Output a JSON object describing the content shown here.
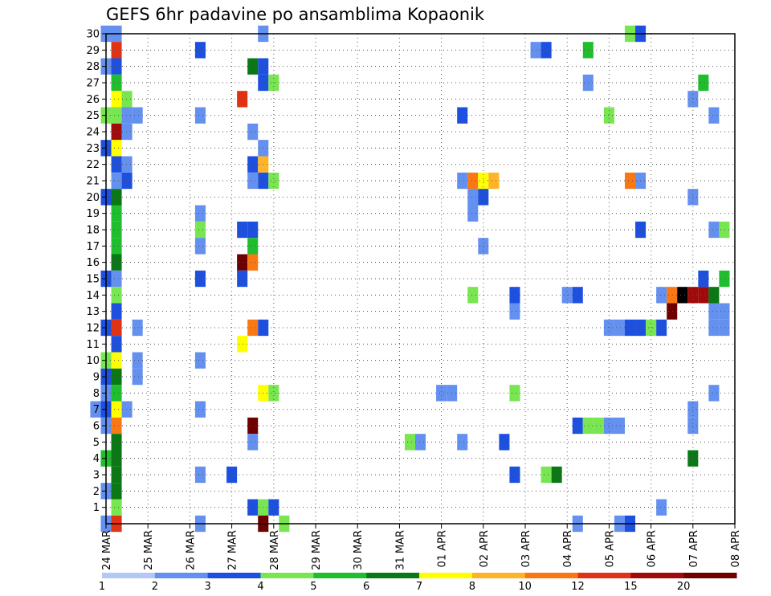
{
  "chart_data": {
    "type": "heatmap",
    "title": "GEFS 6hr padavine po ansamblima Kopaonik",
    "x_labels": [
      "24 MAR",
      "25 MAR",
      "26 MAR",
      "27 MAR",
      "28 MAR",
      "29 MAR",
      "30 MAR",
      "31 MAR",
      "01 APR",
      "02 APR",
      "03 APR",
      "04 APR",
      "05 APR",
      "06 APR",
      "07 APR",
      "08 APR"
    ],
    "y_labels": [
      "1",
      "2",
      "3",
      "4",
      "5",
      "6",
      "7",
      "8",
      "9",
      "10",
      "11",
      "12",
      "13",
      "14",
      "15",
      "16",
      "17",
      "18",
      "19",
      "20",
      "21",
      "22",
      "23",
      "24",
      "25",
      "26",
      "27",
      "28",
      "29",
      "30"
    ],
    "y_range": [
      0,
      30
    ],
    "x_range": [
      0,
      60
    ],
    "grid": true,
    "colorbar": {
      "labels": [
        "1",
        "2",
        "3",
        "4",
        "5",
        "6",
        "7",
        "8",
        "10",
        "12",
        "15",
        "20"
      ],
      "colors": [
        "#b4c8f8",
        "#6490f0",
        "#1e50e0",
        "#78e650",
        "#1ebe2d",
        "#0a7814",
        "#ffff00",
        "#ffb428",
        "#fa7814",
        "#e13214",
        "#a00a0a",
        "#6e0000"
      ]
    },
    "cells": [
      [
        1,
        30,
        1
      ],
      [
        1,
        29,
        9
      ],
      [
        1,
        28,
        2
      ],
      [
        1,
        27,
        4
      ],
      [
        1,
        26,
        6
      ],
      [
        1,
        25,
        3
      ],
      [
        1,
        24,
        10
      ],
      [
        1,
        23,
        6
      ],
      [
        1,
        22,
        2
      ],
      [
        1,
        21,
        1
      ],
      [
        1,
        20,
        5
      ],
      [
        1,
        19,
        4
      ],
      [
        1,
        18,
        4
      ],
      [
        1,
        17,
        4
      ],
      [
        1,
        16,
        5
      ],
      [
        1,
        15,
        1
      ],
      [
        1,
        14,
        3
      ],
      [
        1,
        13,
        2
      ],
      [
        1,
        12,
        9
      ],
      [
        1,
        11,
        2
      ],
      [
        1,
        10,
        6
      ],
      [
        1,
        9,
        5
      ],
      [
        1,
        8,
        4
      ],
      [
        1,
        7,
        6
      ],
      [
        1,
        6,
        8
      ],
      [
        1,
        5,
        5
      ],
      [
        1,
        4,
        5
      ],
      [
        1,
        3,
        5
      ],
      [
        1,
        2,
        5
      ],
      [
        1,
        1,
        3
      ],
      [
        1,
        0,
        9
      ],
      [
        0,
        30,
        1
      ],
      [
        0,
        28,
        1
      ],
      [
        0,
        25,
        3
      ],
      [
        0,
        23,
        2
      ],
      [
        0,
        20,
        2
      ],
      [
        0,
        15,
        2
      ],
      [
        0,
        12,
        2
      ],
      [
        0,
        10,
        3
      ],
      [
        0,
        9,
        2
      ],
      [
        0,
        8,
        1
      ],
      [
        0,
        7,
        2
      ],
      [
        0,
        6,
        1
      ],
      [
        0,
        4,
        4
      ],
      [
        0,
        2,
        1
      ],
      [
        0,
        0,
        1
      ],
      [
        -1,
        7,
        1
      ],
      [
        2,
        26,
        3
      ],
      [
        2,
        25,
        1
      ],
      [
        2,
        24,
        1
      ],
      [
        2,
        22,
        1
      ],
      [
        2,
        21,
        2
      ],
      [
        2,
        7,
        1
      ],
      [
        3,
        25,
        1
      ],
      [
        3,
        12,
        1
      ],
      [
        3,
        10,
        1
      ],
      [
        3,
        9,
        1
      ],
      [
        9,
        29,
        2
      ],
      [
        9,
        25,
        1
      ],
      [
        9,
        19,
        1
      ],
      [
        9,
        18,
        3
      ],
      [
        9,
        17,
        1
      ],
      [
        9,
        15,
        2
      ],
      [
        9,
        10,
        1
      ],
      [
        9,
        7,
        1
      ],
      [
        9,
        3,
        1
      ],
      [
        9,
        0,
        1
      ],
      [
        12,
        3,
        2
      ],
      [
        13,
        26,
        9
      ],
      [
        13,
        18,
        2
      ],
      [
        13,
        16,
        11
      ],
      [
        13,
        15,
        2
      ],
      [
        13,
        11,
        6
      ],
      [
        14,
        28,
        5
      ],
      [
        14,
        24,
        1
      ],
      [
        14,
        22,
        2
      ],
      [
        14,
        21,
        1
      ],
      [
        14,
        18,
        2
      ],
      [
        14,
        17,
        4
      ],
      [
        14,
        16,
        8
      ],
      [
        14,
        12,
        8
      ],
      [
        14,
        6,
        11
      ],
      [
        14,
        5,
        1
      ],
      [
        14,
        1,
        2
      ],
      [
        15,
        30,
        1
      ],
      [
        15,
        28,
        2
      ],
      [
        15,
        27,
        2
      ],
      [
        15,
        23,
        1
      ],
      [
        15,
        22,
        7
      ],
      [
        15,
        21,
        2
      ],
      [
        15,
        12,
        2
      ],
      [
        15,
        8,
        6
      ],
      [
        15,
        1,
        3
      ],
      [
        15,
        0,
        11
      ],
      [
        16,
        27,
        3
      ],
      [
        16,
        21,
        3
      ],
      [
        16,
        8,
        3
      ],
      [
        16,
        1,
        2
      ],
      [
        17,
        0,
        3
      ],
      [
        29,
        5,
        3
      ],
      [
        30,
        5,
        1
      ],
      [
        32,
        8,
        1
      ],
      [
        33,
        8,
        1
      ],
      [
        34,
        25,
        2
      ],
      [
        34,
        21,
        1
      ],
      [
        34,
        5,
        1
      ],
      [
        35,
        21,
        8
      ],
      [
        35,
        19,
        1
      ],
      [
        35,
        20,
        1
      ],
      [
        35,
        14,
        3
      ],
      [
        36,
        21,
        6
      ],
      [
        36,
        20,
        2
      ],
      [
        36,
        17,
        1
      ],
      [
        37,
        21,
        7
      ],
      [
        38,
        5,
        2
      ],
      [
        39,
        14,
        2
      ],
      [
        39,
        13,
        1
      ],
      [
        39,
        8,
        3
      ],
      [
        39,
        3,
        2
      ],
      [
        41,
        29,
        1
      ],
      [
        42,
        29,
        2
      ],
      [
        42,
        3,
        3
      ],
      [
        43,
        3,
        5
      ],
      [
        44,
        14,
        1
      ],
      [
        45,
        14,
        2
      ],
      [
        45,
        6,
        2
      ],
      [
        45,
        0,
        1
      ],
      [
        46,
        29,
        4
      ],
      [
        46,
        27,
        1
      ],
      [
        46,
        6,
        3
      ],
      [
        47,
        6,
        3
      ],
      [
        48,
        25,
        3
      ],
      [
        48,
        12,
        1
      ],
      [
        48,
        6,
        1
      ],
      [
        49,
        12,
        1
      ],
      [
        49,
        6,
        1
      ],
      [
        49,
        0,
        1
      ],
      [
        50,
        30,
        3
      ],
      [
        50,
        21,
        8
      ],
      [
        50,
        12,
        2
      ],
      [
        50,
        0,
        2
      ],
      [
        51,
        30,
        2
      ],
      [
        51,
        21,
        1
      ],
      [
        51,
        18,
        2
      ],
      [
        51,
        12,
        2
      ],
      [
        52,
        12,
        3
      ],
      [
        53,
        14,
        1
      ],
      [
        53,
        12,
        2
      ],
      [
        53,
        1,
        1
      ],
      [
        54,
        14,
        8
      ],
      [
        54,
        13,
        11
      ],
      [
        55,
        14,
        12
      ],
      [
        56,
        26,
        1
      ],
      [
        56,
        20,
        1
      ],
      [
        56,
        14,
        10
      ],
      [
        56,
        7,
        1
      ],
      [
        56,
        6,
        1
      ],
      [
        56,
        4,
        5
      ],
      [
        57,
        27,
        4
      ],
      [
        57,
        15,
        2
      ],
      [
        57,
        14,
        10
      ],
      [
        58,
        25,
        1
      ],
      [
        58,
        18,
        1
      ],
      [
        58,
        14,
        5
      ],
      [
        58,
        13,
        1
      ],
      [
        58,
        12,
        1
      ],
      [
        58,
        8,
        1
      ],
      [
        59,
        18,
        3
      ],
      [
        59,
        15,
        4
      ],
      [
        59,
        13,
        1
      ],
      [
        59,
        12,
        1
      ]
    ]
  }
}
